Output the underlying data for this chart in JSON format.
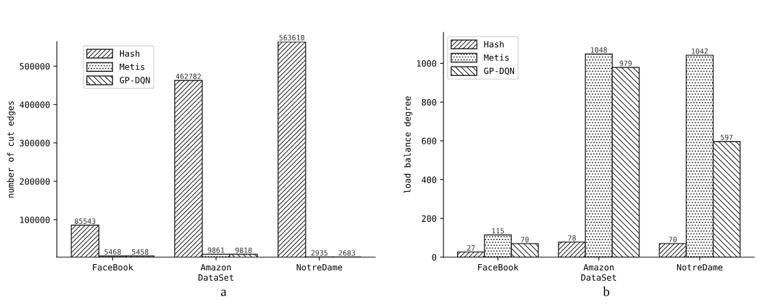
{
  "chart_data": [
    {
      "type": "bar",
      "categories": [
        "FaceBook",
        "Amazon",
        "NotreDame"
      ],
      "xlabel": "DataSet",
      "ylabel": "number of cut edges",
      "series": [
        {
          "name": "Hash",
          "color": "#222222",
          "values": [
            85543,
            462782,
            563610
          ]
        },
        {
          "name": "Metis",
          "color": "#222222",
          "values": [
            5468,
            9861,
            2935
          ]
        },
        {
          "name": "GP-DQN",
          "color": "#222222",
          "values": [
            5458,
            9818,
            2683
          ]
        }
      ],
      "ylim": [
        2300,
        564000
      ],
      "yticks": [
        100000,
        200000,
        300000,
        400000,
        500000
      ],
      "data_labels": true,
      "legend": "top left",
      "grid": false,
      "annotations": [
        "a"
      ]
    },
    {
      "type": "bar",
      "categories": [
        "FaceBook",
        "Amazon",
        "NotreDame"
      ],
      "xlabel": "DataSet",
      "ylabel": "load balance degree",
      "series": [
        {
          "name": "Hash",
          "color": "#222222",
          "values": [
            27,
            78,
            70
          ]
        },
        {
          "name": "Metis",
          "color": "#222222",
          "values": [
            115,
            1048,
            1042
          ]
        },
        {
          "name": "GP-DQN",
          "color": "#222222",
          "values": [
            70,
            979,
            597
          ]
        }
      ],
      "ylim": [
        0,
        1160
      ],
      "yticks": [
        0,
        200,
        400,
        600,
        800,
        1000
      ],
      "data_labels": true,
      "legend": "top left",
      "grid": false,
      "annotations": [
        "b"
      ]
    }
  ]
}
